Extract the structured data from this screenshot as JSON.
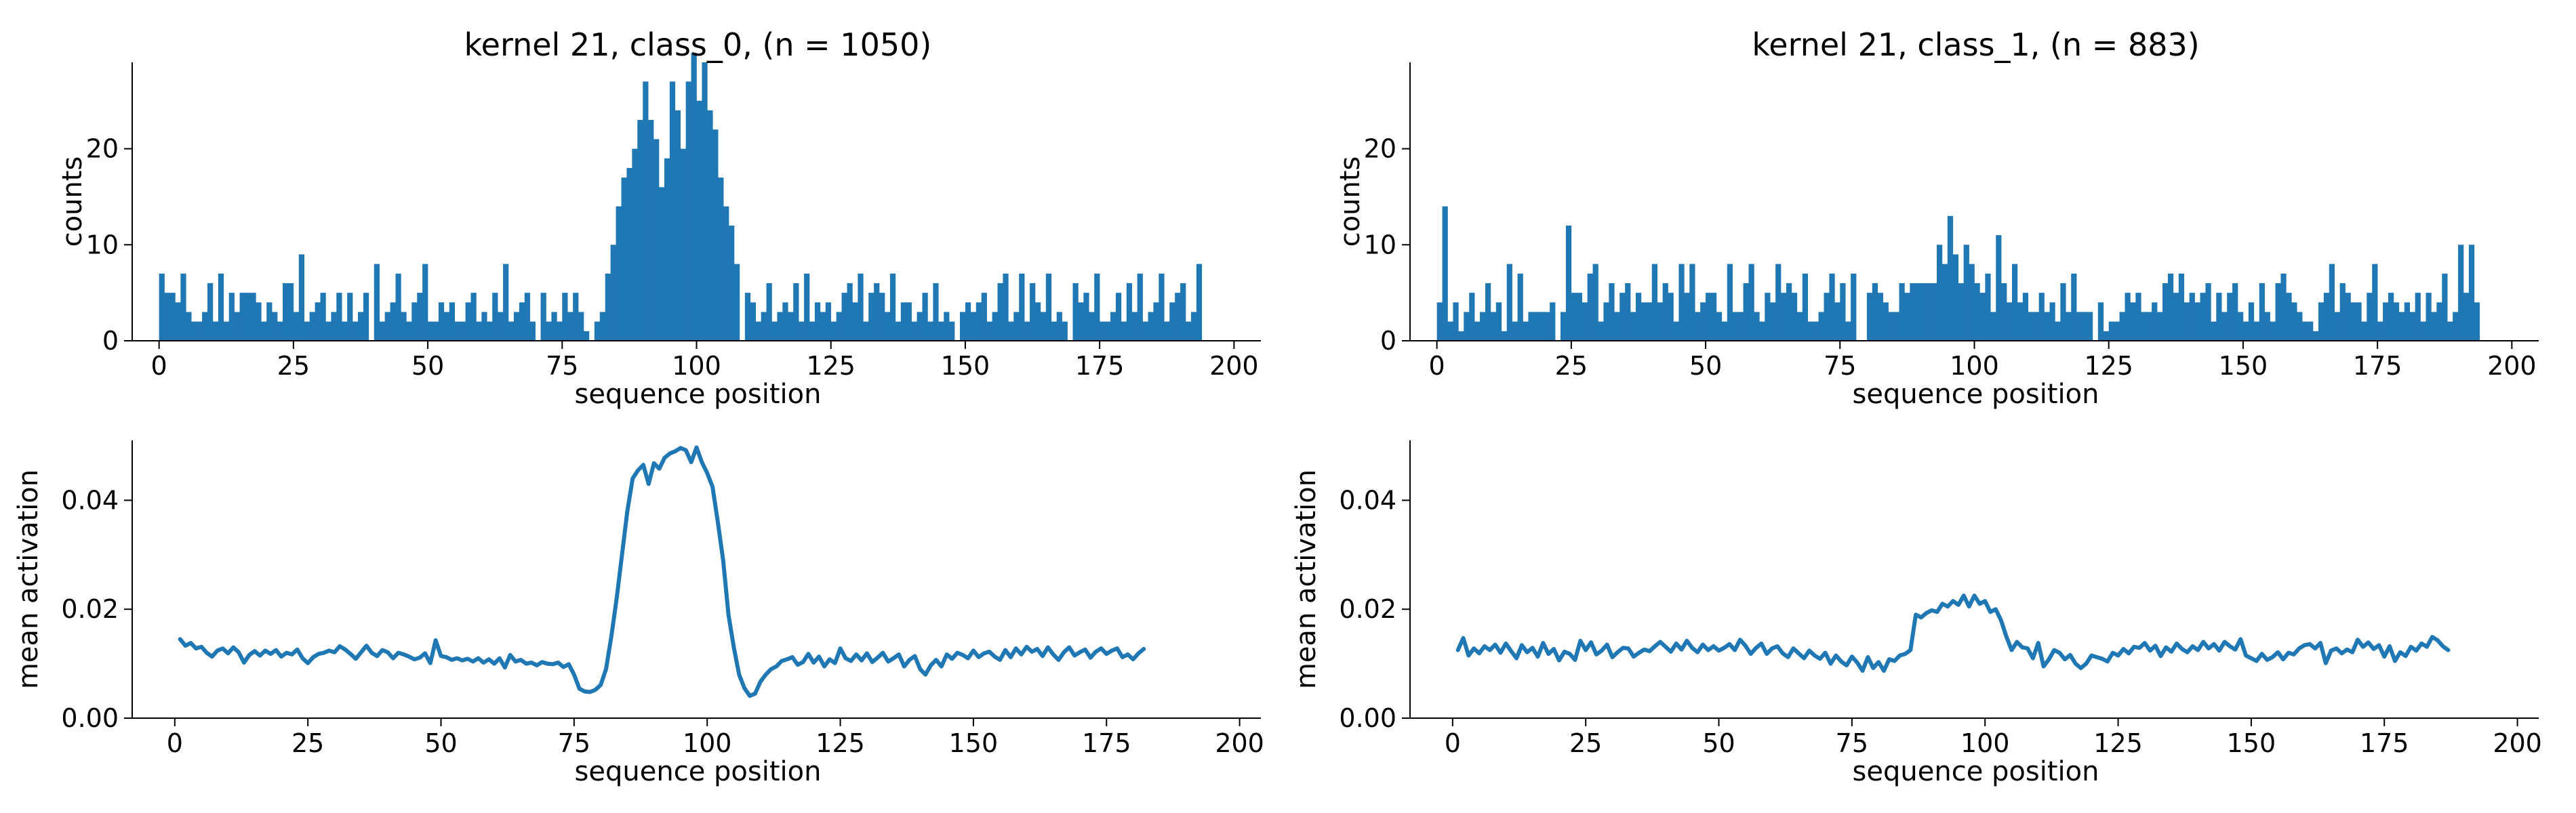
{
  "colors": {
    "series": "#1f77b4"
  },
  "chart_data": [
    {
      "id": "hist_class0",
      "type": "bar",
      "title": "kernel 21, class_0, (n = 1050)",
      "xlabel": "sequence position",
      "ylabel": "counts",
      "xlim": [
        -5,
        205
      ],
      "ylim": [
        0,
        29
      ],
      "xticks": [
        0,
        25,
        50,
        75,
        100,
        125,
        150,
        175,
        200
      ],
      "yticks": [
        0,
        10,
        20
      ],
      "x_start": 0,
      "bin_width": 1,
      "values": [
        7,
        5,
        5,
        4,
        7,
        3,
        2,
        2,
        3,
        6,
        2,
        7,
        2,
        5,
        3,
        5,
        5,
        5,
        4,
        2,
        4,
        3,
        2,
        6,
        6,
        3,
        9,
        2,
        3,
        4,
        5,
        2,
        3,
        5,
        2,
        5,
        2,
        3,
        5,
        0,
        8,
        2,
        3,
        4,
        7,
        3,
        2,
        4,
        5,
        8,
        2,
        2,
        4,
        3,
        4,
        2,
        2,
        4,
        5,
        2,
        3,
        2,
        5,
        3,
        8,
        2,
        3,
        4,
        5,
        2,
        0,
        5,
        2,
        3,
        2,
        5,
        3,
        5,
        3,
        1,
        0,
        2,
        3,
        7,
        10,
        14,
        17,
        18,
        20,
        23,
        27,
        23,
        21,
        16,
        19,
        27,
        24,
        20,
        27,
        30,
        25,
        29,
        24,
        22,
        17,
        14,
        12,
        8,
        0,
        5,
        4,
        2,
        3,
        6,
        2,
        3,
        4,
        3,
        6,
        2,
        7,
        2,
        4,
        3,
        4,
        2,
        3,
        5,
        6,
        4,
        7,
        2,
        5,
        6,
        5,
        3,
        7,
        2,
        4,
        4,
        2,
        3,
        5,
        2,
        6,
        2,
        3,
        2,
        0,
        3,
        4,
        3,
        4,
        5,
        2,
        3,
        6,
        7,
        2,
        3,
        7,
        2,
        6,
        4,
        3,
        7,
        2,
        3,
        2,
        0,
        6,
        4,
        5,
        3,
        7,
        2,
        2,
        3,
        5,
        2,
        6,
        3,
        7,
        2,
        3,
        4,
        7,
        2,
        4,
        5,
        6,
        2,
        3,
        8
      ]
    },
    {
      "id": "hist_class1",
      "type": "bar",
      "title": "kernel 21, class_1, (n = 883)",
      "xlabel": "sequence position",
      "ylabel": "counts",
      "xlim": [
        -5,
        205
      ],
      "ylim": [
        0,
        29
      ],
      "xticks": [
        0,
        25,
        50,
        75,
        100,
        125,
        150,
        175,
        200
      ],
      "yticks": [
        0,
        10,
        20
      ],
      "x_start": 0,
      "bin_width": 1,
      "values": [
        4,
        14,
        2,
        4,
        1,
        3,
        5,
        2,
        3,
        6,
        3,
        4,
        1,
        8,
        2,
        7,
        2,
        3,
        3,
        3,
        3,
        4,
        0,
        3,
        12,
        5,
        5,
        4,
        7,
        8,
        2,
        4,
        6,
        3,
        5,
        6,
        3,
        5,
        4,
        4,
        8,
        4,
        6,
        5,
        2,
        8,
        5,
        8,
        3,
        4,
        5,
        5,
        3,
        2,
        8,
        3,
        3,
        6,
        8,
        3,
        2,
        5,
        4,
        8,
        5,
        6,
        5,
        3,
        7,
        2,
        2,
        3,
        5,
        7,
        4,
        6,
        2,
        7,
        0,
        0,
        5,
        6,
        5,
        4,
        3,
        3,
        6,
        5,
        6,
        6,
        6,
        6,
        6,
        10,
        8,
        13,
        9,
        6,
        10,
        8,
        6,
        5,
        7,
        3,
        11,
        6,
        4,
        8,
        4,
        5,
        3,
        3,
        5,
        3,
        4,
        2,
        6,
        3,
        7,
        3,
        3,
        3,
        0,
        4,
        1,
        2,
        2,
        3,
        5,
        4,
        5,
        3,
        3,
        4,
        3,
        6,
        7,
        5,
        7,
        4,
        5,
        4,
        5,
        6,
        2,
        5,
        3,
        5,
        6,
        3,
        2,
        4,
        2,
        6,
        3,
        2,
        6,
        7,
        5,
        4,
        3,
        2,
        2,
        1,
        4,
        5,
        8,
        3,
        6,
        5,
        4,
        4,
        2,
        5,
        8,
        2,
        4,
        5,
        4,
        3,
        4,
        3,
        5,
        2,
        5,
        3,
        4,
        7,
        2,
        3,
        10,
        5,
        10,
        4
      ]
    },
    {
      "id": "mean_class0",
      "type": "line",
      "xlabel": "sequence position",
      "ylabel": "mean activation",
      "xlim": [
        -8,
        204
      ],
      "ylim": [
        0,
        0.051
      ],
      "xticks": [
        0,
        25,
        50,
        75,
        100,
        125,
        150,
        175,
        200
      ],
      "yticks": [
        0.0,
        0.02,
        0.04
      ],
      "x_start": 1,
      "values": [
        0.0145,
        0.0133,
        0.0138,
        0.0128,
        0.0131,
        0.012,
        0.0113,
        0.0124,
        0.0128,
        0.0119,
        0.013,
        0.0121,
        0.0102,
        0.0116,
        0.0123,
        0.0115,
        0.0124,
        0.0118,
        0.0125,
        0.0113,
        0.012,
        0.0117,
        0.0126,
        0.011,
        0.0101,
        0.0112,
        0.0118,
        0.012,
        0.0124,
        0.0121,
        0.0132,
        0.0126,
        0.0118,
        0.0109,
        0.0121,
        0.0133,
        0.012,
        0.0114,
        0.0125,
        0.0121,
        0.011,
        0.012,
        0.0117,
        0.0113,
        0.0108,
        0.0111,
        0.0119,
        0.0101,
        0.0143,
        0.0114,
        0.0112,
        0.0107,
        0.011,
        0.0106,
        0.0109,
        0.0104,
        0.011,
        0.0102,
        0.0108,
        0.01,
        0.011,
        0.0093,
        0.0116,
        0.0104,
        0.0107,
        0.01,
        0.0102,
        0.0097,
        0.0103,
        0.01,
        0.0099,
        0.0102,
        0.0094,
        0.0099,
        0.008,
        0.0054,
        0.0049,
        0.0048,
        0.0052,
        0.0061,
        0.009,
        0.015,
        0.022,
        0.03,
        0.038,
        0.044,
        0.0455,
        0.0465,
        0.043,
        0.0468,
        0.0458,
        0.0478,
        0.0486,
        0.049,
        0.0496,
        0.0492,
        0.047,
        0.0497,
        0.047,
        0.045,
        0.0425,
        0.036,
        0.029,
        0.019,
        0.013,
        0.008,
        0.0055,
        0.0041,
        0.0045,
        0.0067,
        0.008,
        0.009,
        0.0095,
        0.0105,
        0.0108,
        0.0112,
        0.0098,
        0.0103,
        0.0118,
        0.0102,
        0.0113,
        0.0095,
        0.0108,
        0.0101,
        0.0128,
        0.011,
        0.0105,
        0.0117,
        0.0106,
        0.0119,
        0.0103,
        0.0111,
        0.012,
        0.0104,
        0.011,
        0.0117,
        0.0095,
        0.0107,
        0.0114,
        0.009,
        0.008,
        0.0097,
        0.0107,
        0.0095,
        0.0117,
        0.0109,
        0.012,
        0.0116,
        0.011,
        0.0124,
        0.0112,
        0.0119,
        0.0122,
        0.0113,
        0.0107,
        0.0125,
        0.0112,
        0.0128,
        0.0117,
        0.0131,
        0.0122,
        0.0127,
        0.0114,
        0.013,
        0.0117,
        0.0107,
        0.0121,
        0.013,
        0.0115,
        0.0121,
        0.0126,
        0.0111,
        0.0122,
        0.0128,
        0.0118,
        0.0124,
        0.0128,
        0.0112,
        0.0117,
        0.0108,
        0.0119,
        0.0127
      ]
    },
    {
      "id": "mean_class1",
      "type": "line",
      "xlabel": "sequence position",
      "ylabel": "mean activation",
      "xlim": [
        -8,
        204
      ],
      "ylim": [
        0,
        0.051
      ],
      "xticks": [
        0,
        25,
        50,
        75,
        100,
        125,
        150,
        175,
        200
      ],
      "yticks": [
        0.0,
        0.02,
        0.04
      ],
      "x_start": 1,
      "values": [
        0.0125,
        0.0147,
        0.0115,
        0.0128,
        0.0119,
        0.0132,
        0.0125,
        0.0135,
        0.012,
        0.0137,
        0.0123,
        0.011,
        0.0134,
        0.0121,
        0.0129,
        0.0113,
        0.0138,
        0.0118,
        0.0127,
        0.0106,
        0.0122,
        0.0118,
        0.0107,
        0.0142,
        0.0125,
        0.0139,
        0.0117,
        0.0124,
        0.0135,
        0.0112,
        0.0121,
        0.0129,
        0.0128,
        0.0113,
        0.012,
        0.0126,
        0.0123,
        0.0132,
        0.014,
        0.0131,
        0.0122,
        0.0137,
        0.0126,
        0.0142,
        0.0129,
        0.0121,
        0.0135,
        0.0125,
        0.0132,
        0.0124,
        0.0129,
        0.0136,
        0.0125,
        0.0144,
        0.0133,
        0.0118,
        0.0129,
        0.0137,
        0.0118,
        0.0128,
        0.0132,
        0.0119,
        0.0112,
        0.0128,
        0.0119,
        0.011,
        0.0124,
        0.0115,
        0.0109,
        0.012,
        0.01,
        0.0115,
        0.0104,
        0.0097,
        0.0113,
        0.0102,
        0.0087,
        0.0112,
        0.0092,
        0.0103,
        0.0087,
        0.0108,
        0.0105,
        0.0115,
        0.0118,
        0.0125,
        0.019,
        0.0185,
        0.0193,
        0.0198,
        0.0195,
        0.021,
        0.0205,
        0.0215,
        0.0208,
        0.0225,
        0.0205,
        0.0225,
        0.021,
        0.0215,
        0.0195,
        0.02,
        0.018,
        0.015,
        0.0125,
        0.014,
        0.013,
        0.0128,
        0.011,
        0.0138,
        0.0095,
        0.0108,
        0.0125,
        0.012,
        0.0108,
        0.0116,
        0.01,
        0.0092,
        0.01,
        0.0115,
        0.0112,
        0.0109,
        0.0104,
        0.012,
        0.0115,
        0.0127,
        0.0119,
        0.0131,
        0.0129,
        0.0138,
        0.0124,
        0.0133,
        0.0114,
        0.013,
        0.0122,
        0.0137,
        0.0127,
        0.0121,
        0.0132,
        0.0125,
        0.014,
        0.0128,
        0.0136,
        0.0124,
        0.014,
        0.0132,
        0.0126,
        0.0145,
        0.0115,
        0.011,
        0.0105,
        0.0118,
        0.0107,
        0.0112,
        0.0121,
        0.0108,
        0.012,
        0.0117,
        0.0128,
        0.0134,
        0.0136,
        0.0128,
        0.0138,
        0.0101,
        0.0124,
        0.0128,
        0.0119,
        0.0126,
        0.0121,
        0.0144,
        0.0131,
        0.0139,
        0.0127,
        0.0134,
        0.0113,
        0.0132,
        0.0105,
        0.0121,
        0.0114,
        0.0131,
        0.0124,
        0.0137,
        0.0131,
        0.0149,
        0.0143,
        0.0132,
        0.0125
      ]
    }
  ]
}
